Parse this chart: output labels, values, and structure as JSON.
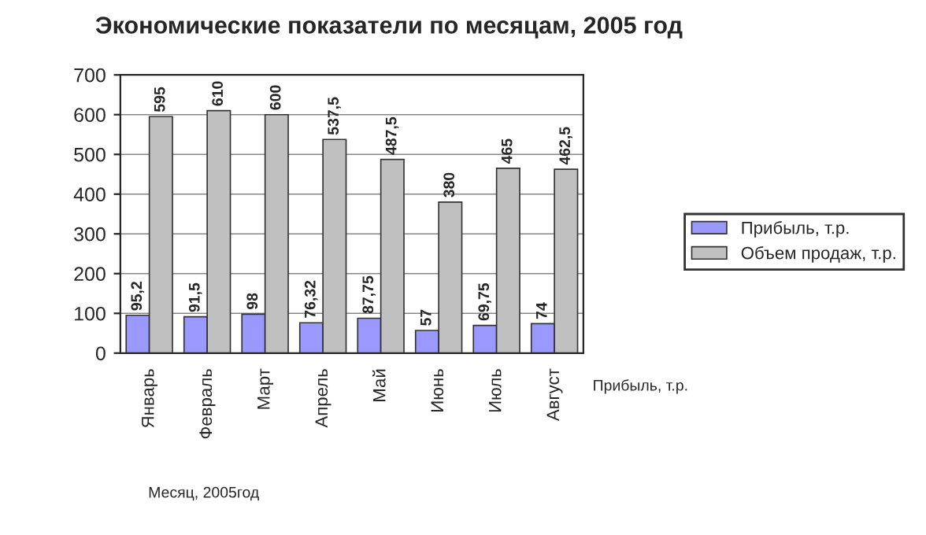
{
  "chart_data": {
    "type": "bar",
    "title": "Экономические показатели по месяцам, 2005 год",
    "xlabel": "Месяц, 2005год",
    "categories": [
      "Январь",
      "Февраль",
      "Март",
      "Апрель",
      "Май",
      "Июнь",
      "Июль",
      "Август"
    ],
    "series": [
      {
        "name": "Прибыль, т.р.",
        "color": "#9999ff",
        "values": [
          95.2,
          91.5,
          98,
          76.32,
          87.75,
          57,
          69.75,
          74
        ],
        "value_labels": [
          "95,2",
          "91,5",
          "98",
          "76,32",
          "87,75",
          "57",
          "69,75",
          "74"
        ]
      },
      {
        "name": "Объем продаж, т.р.",
        "color": "#c0c0c0",
        "values": [
          595,
          610,
          600,
          537.5,
          487.5,
          380,
          465,
          462.5
        ],
        "value_labels": [
          "595",
          "610",
          "600",
          "537,5",
          "487,5",
          "380",
          "465",
          "462,5"
        ]
      }
    ],
    "ylim": [
      0,
      700
    ],
    "yticks": [
      0,
      100,
      200,
      300,
      400,
      500,
      600,
      700
    ],
    "grid": "y",
    "legend": "right",
    "annotations": [
      "Прибыль, т.р."
    ]
  }
}
